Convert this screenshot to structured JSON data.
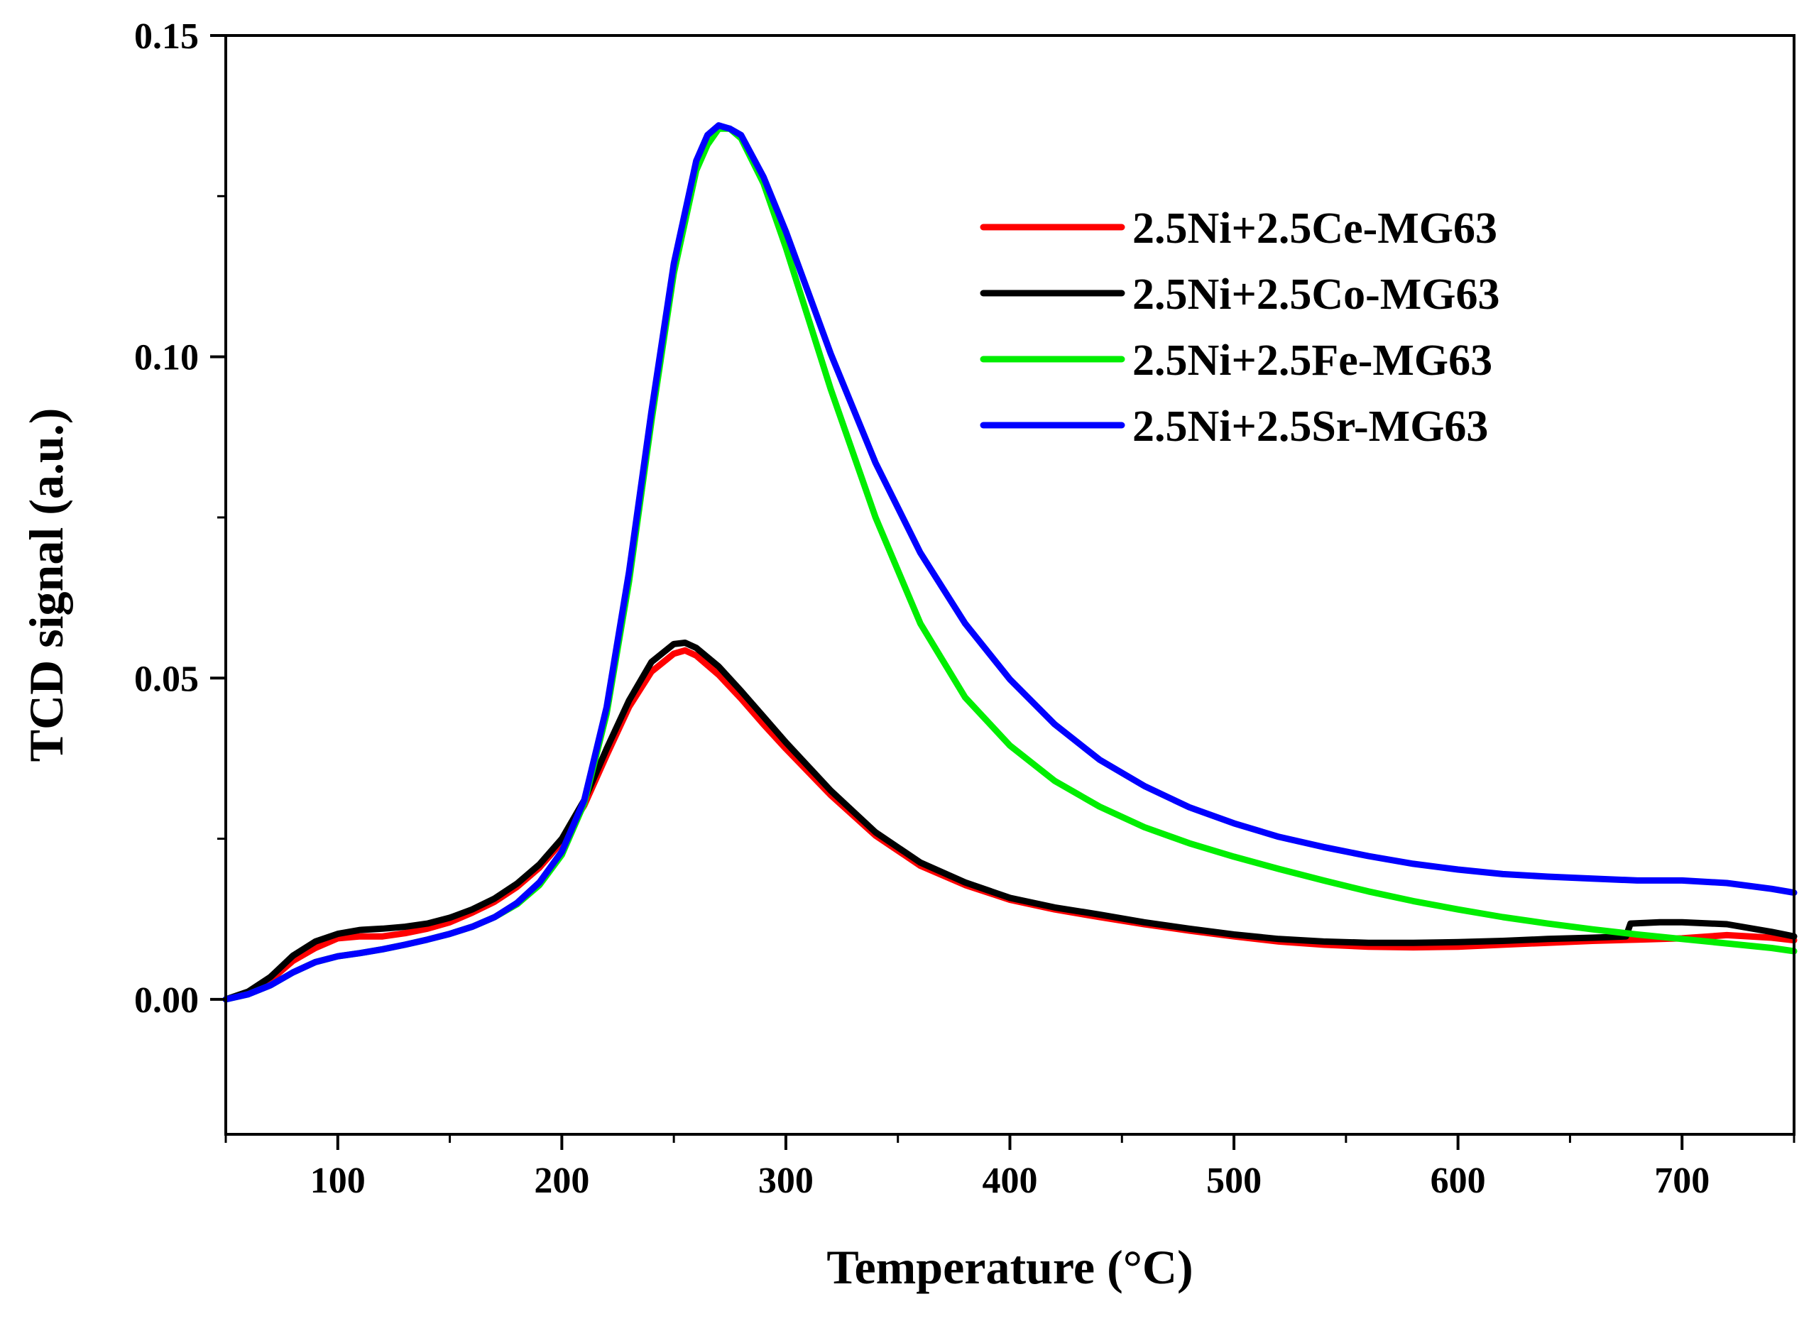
{
  "chart_data": {
    "type": "line",
    "title": "",
    "xlabel": "Temperature (°C)",
    "ylabel": "TCD signal (a.u.)",
    "xlim": [
      50,
      750
    ],
    "ylim": [
      -0.021,
      0.15
    ],
    "xticks": [
      100,
      200,
      300,
      400,
      500,
      600,
      700
    ],
    "xtick_labels": [
      "100",
      "200",
      "300",
      "400",
      "500",
      "600",
      "700"
    ],
    "yticks": [
      0.0,
      0.05,
      0.1,
      0.15
    ],
    "ytick_labels": [
      "0.00",
      "0.05",
      "0.10",
      "0.15"
    ],
    "legend_position": "top-right",
    "series": [
      {
        "name": "2.5Ni+2.5Ce-MG63",
        "color": "#ff0000",
        "x": [
          50,
          60,
          70,
          80,
          90,
          100,
          110,
          120,
          130,
          140,
          150,
          160,
          170,
          180,
          190,
          200,
          210,
          220,
          230,
          240,
          250,
          255,
          260,
          270,
          280,
          290,
          300,
          320,
          340,
          360,
          380,
          400,
          420,
          440,
          460,
          480,
          500,
          520,
          540,
          560,
          580,
          600,
          620,
          640,
          660,
          680,
          700,
          720,
          740,
          750
        ],
        "y": [
          0.0,
          0.001,
          0.003,
          0.006,
          0.008,
          0.0095,
          0.0098,
          0.0098,
          0.0103,
          0.011,
          0.012,
          0.0135,
          0.0152,
          0.0175,
          0.0205,
          0.0245,
          0.0302,
          0.038,
          0.0455,
          0.051,
          0.0538,
          0.0543,
          0.0535,
          0.0505,
          0.0468,
          0.0428,
          0.039,
          0.0318,
          0.0255,
          0.0208,
          0.0178,
          0.0155,
          0.014,
          0.0128,
          0.0117,
          0.0107,
          0.0098,
          0.009,
          0.0085,
          0.0082,
          0.0081,
          0.0082,
          0.0085,
          0.0088,
          0.0091,
          0.0093,
          0.0095,
          0.01,
          0.0096,
          0.0092
        ]
      },
      {
        "name": "2.5Ni+2.5Co-MG63",
        "color": "#000000",
        "x": [
          50,
          60,
          70,
          80,
          90,
          100,
          110,
          120,
          130,
          140,
          150,
          160,
          170,
          180,
          190,
          200,
          210,
          220,
          230,
          240,
          250,
          255,
          260,
          270,
          280,
          290,
          300,
          320,
          340,
          360,
          380,
          400,
          420,
          440,
          460,
          480,
          500,
          520,
          540,
          560,
          580,
          600,
          620,
          640,
          660,
          675,
          677,
          690,
          700,
          720,
          740,
          750
        ],
        "y": [
          0.0,
          0.0012,
          0.0035,
          0.0068,
          0.009,
          0.0102,
          0.0108,
          0.011,
          0.0113,
          0.0118,
          0.0127,
          0.014,
          0.0157,
          0.018,
          0.021,
          0.025,
          0.031,
          0.039,
          0.0465,
          0.0525,
          0.0553,
          0.0555,
          0.0547,
          0.0518,
          0.048,
          0.044,
          0.04,
          0.0325,
          0.026,
          0.0213,
          0.0182,
          0.0158,
          0.0143,
          0.0132,
          0.012,
          0.011,
          0.0101,
          0.0094,
          0.009,
          0.0088,
          0.0088,
          0.0089,
          0.0091,
          0.0094,
          0.0096,
          0.0098,
          0.0118,
          0.012,
          0.012,
          0.0117,
          0.0105,
          0.0098
        ]
      },
      {
        "name": "2.5Ni+2.5Fe-MG63",
        "color": "#00ee00",
        "x": [
          50,
          60,
          70,
          80,
          90,
          100,
          110,
          120,
          130,
          140,
          150,
          160,
          170,
          180,
          190,
          200,
          210,
          220,
          230,
          240,
          250,
          260,
          265,
          270,
          275,
          280,
          290,
          300,
          310,
          320,
          340,
          360,
          380,
          400,
          420,
          440,
          460,
          480,
          500,
          520,
          540,
          560,
          580,
          600,
          620,
          640,
          660,
          680,
          700,
          720,
          740,
          750
        ],
        "y": [
          0.0,
          0.0008,
          0.0022,
          0.0042,
          0.0058,
          0.0067,
          0.0072,
          0.0078,
          0.0085,
          0.0093,
          0.0102,
          0.0113,
          0.0128,
          0.0148,
          0.0178,
          0.0225,
          0.0305,
          0.0445,
          0.065,
          0.09,
          0.113,
          0.129,
          0.133,
          0.1355,
          0.1355,
          0.134,
          0.127,
          0.117,
          0.106,
          0.095,
          0.075,
          0.0585,
          0.047,
          0.0395,
          0.034,
          0.03,
          0.0268,
          0.0243,
          0.0222,
          0.0203,
          0.0185,
          0.0168,
          0.0153,
          0.014,
          0.0128,
          0.0118,
          0.0109,
          0.0101,
          0.0094,
          0.0087,
          0.008,
          0.0075
        ]
      },
      {
        "name": "2.5Ni+2.5Sr-MG63",
        "color": "#0000ff",
        "x": [
          50,
          60,
          70,
          80,
          90,
          100,
          110,
          120,
          130,
          140,
          150,
          160,
          170,
          180,
          190,
          200,
          210,
          220,
          230,
          240,
          250,
          260,
          265,
          270,
          275,
          280,
          290,
          300,
          310,
          320,
          340,
          360,
          380,
          400,
          420,
          440,
          460,
          480,
          500,
          520,
          540,
          560,
          580,
          600,
          620,
          640,
          660,
          680,
          700,
          720,
          740,
          750
        ],
        "y": [
          0.0,
          0.0008,
          0.0022,
          0.0042,
          0.0058,
          0.0067,
          0.0072,
          0.0078,
          0.0085,
          0.0093,
          0.0102,
          0.0113,
          0.0128,
          0.015,
          0.0182,
          0.023,
          0.031,
          0.0455,
          0.0665,
          0.0915,
          0.1145,
          0.1305,
          0.1345,
          0.136,
          0.1355,
          0.1345,
          0.128,
          0.1195,
          0.11,
          0.1005,
          0.0835,
          0.0695,
          0.0585,
          0.0498,
          0.0428,
          0.0373,
          0.0332,
          0.0299,
          0.0274,
          0.0253,
          0.0237,
          0.0223,
          0.0211,
          0.0202,
          0.0195,
          0.0191,
          0.0188,
          0.0185,
          0.0185,
          0.0181,
          0.0172,
          0.0166
        ]
      }
    ]
  }
}
